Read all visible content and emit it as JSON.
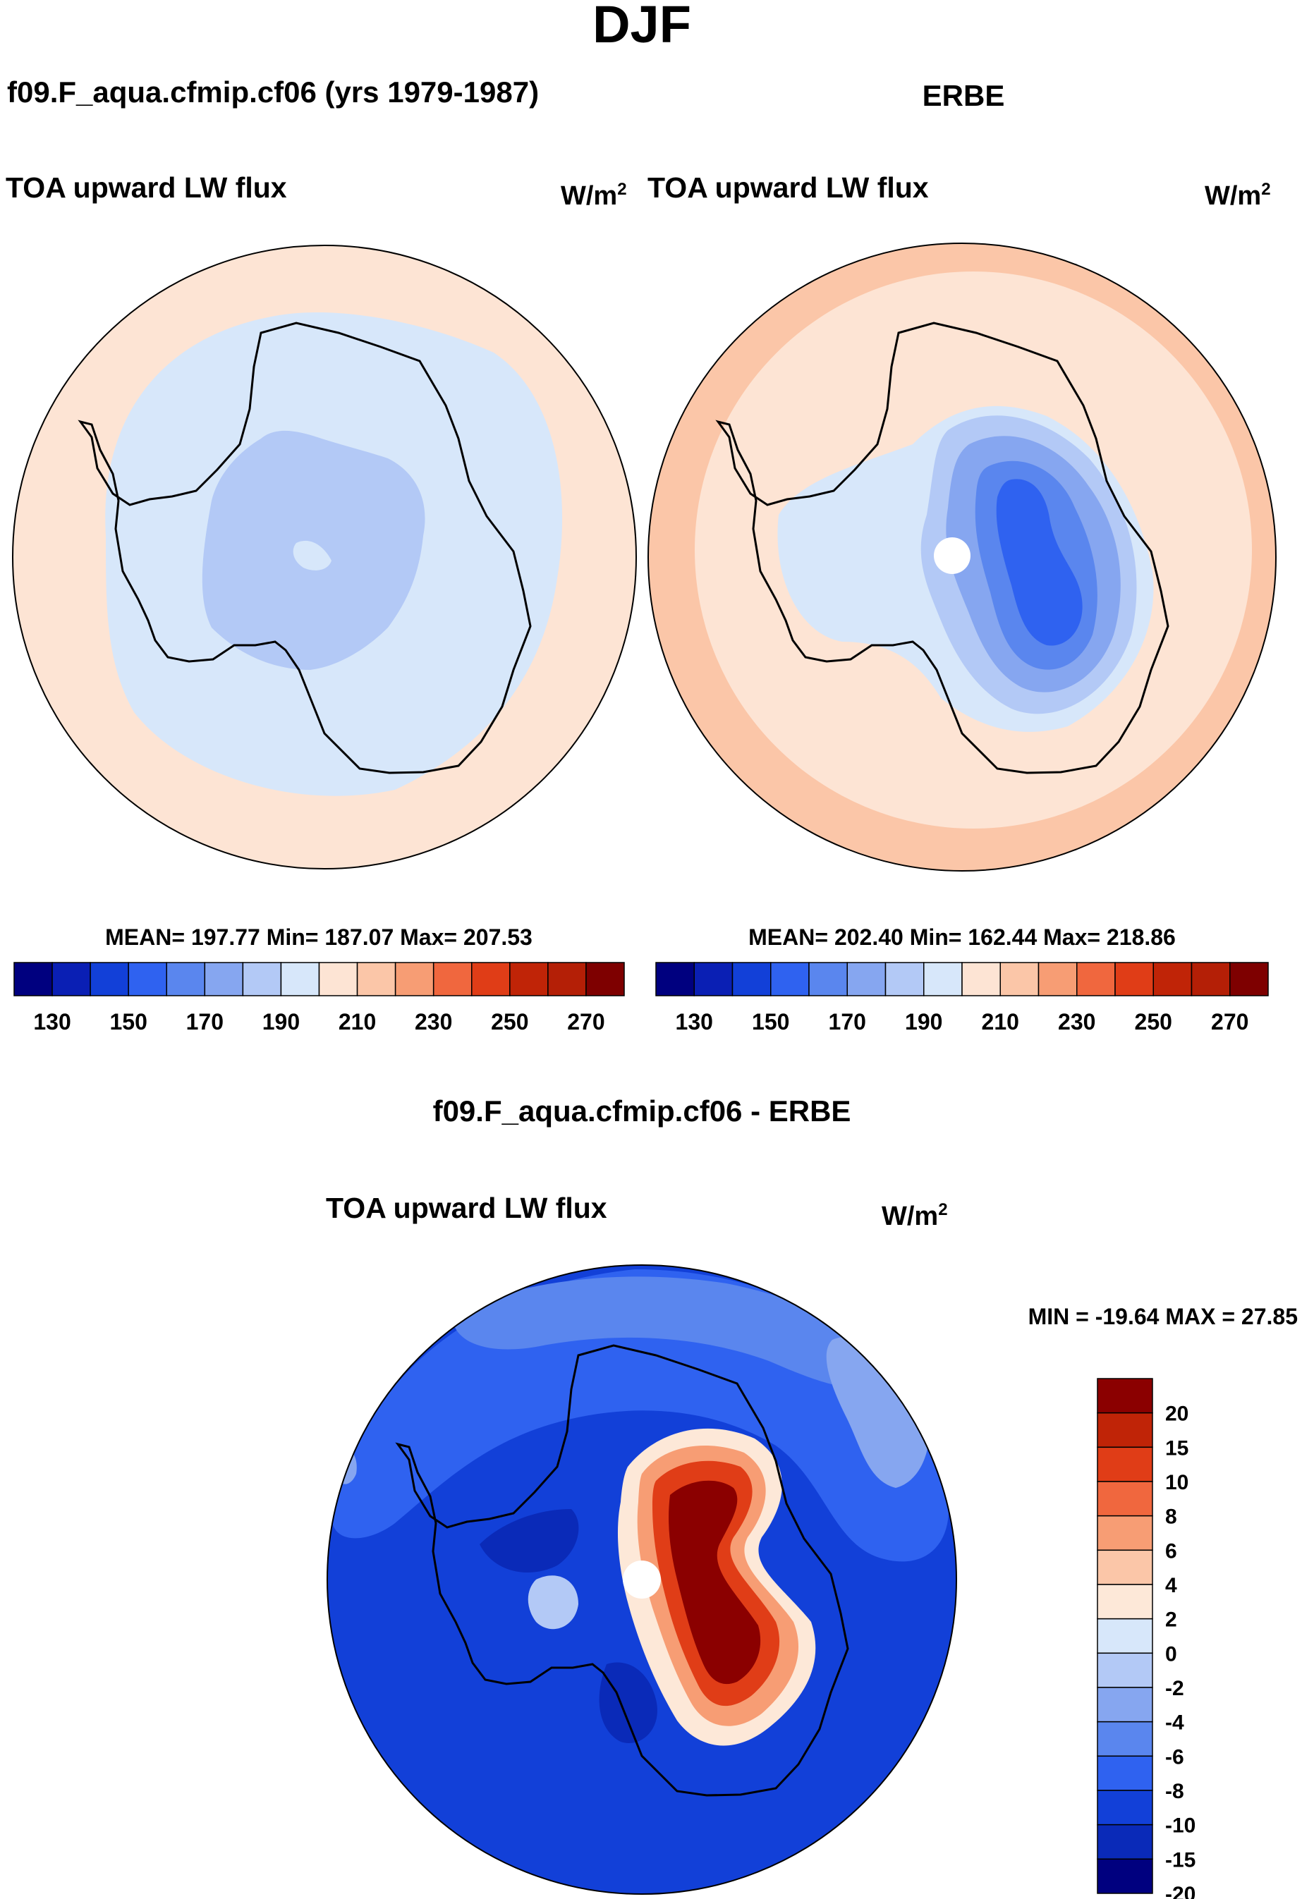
{
  "figure": {
    "season": "DJF",
    "unit_base": "W/m",
    "unit_exp": "2"
  },
  "panels": {
    "model": {
      "case_title": "f09.F_aqua.cfmip.cf06 (yrs 1979-1987)",
      "variable": "TOA upward LW flux",
      "stats": "MEAN= 197.77  Min= 187.07  Max= 207.53"
    },
    "obs": {
      "case_title": "ERBE",
      "variable": "TOA upward LW flux",
      "stats": "MEAN= 202.40  Min= 162.44  Max= 218.86"
    },
    "diff": {
      "case_title": "f09.F_aqua.cfmip.cf06 - ERBE",
      "variable": "TOA upward LW flux",
      "stats": "MIN = -19.64 MAX =  27.85"
    }
  },
  "colors": {
    "abs_palette": [
      "#00007f",
      "#0a1fb4",
      "#1240d8",
      "#2f62f0",
      "#5a86ee",
      "#86a6f0",
      "#b3c9f6",
      "#d7e7fa",
      "#fde4d4",
      "#fbc6a8",
      "#f79d74",
      "#f0673e",
      "#e03d17",
      "#c02407",
      "#b41f06",
      "#7e0000"
    ],
    "diff_palette": [
      "#00007f",
      "#0a2ab8",
      "#1240d8",
      "#2f62f0",
      "#5a86ee",
      "#86a6f0",
      "#b3c9f6",
      "#d7e7fa",
      "#fde8d8",
      "#fbc6a8",
      "#f79d74",
      "#f0673e",
      "#e03d17",
      "#c02407",
      "#8b0000"
    ],
    "coast": "#000000",
    "missing": "#ffffff"
  },
  "chart_data": [
    {
      "type": "heatmap",
      "projection": "south-polar-stereographic",
      "title": "f09.F_aqua.cfmip.cf06 (yrs 1979-1987)",
      "subtitle": "TOA upward LW flux",
      "units": "W/m^2",
      "mean": 197.77,
      "min": 187.07,
      "max": 207.53,
      "contour_levels": [
        130,
        140,
        150,
        160,
        170,
        180,
        190,
        200,
        210,
        220,
        230,
        240,
        250,
        260,
        270
      ],
      "colorbar_tick_labels": [
        "130",
        "150",
        "170",
        "190",
        "210",
        "230",
        "250",
        "270"
      ],
      "regions": [
        {
          "area": "outer ring (southern ocean)",
          "value": 205
        },
        {
          "area": "coastal ring",
          "value": 195
        },
        {
          "area": "antarctic interior",
          "value": 187
        }
      ]
    },
    {
      "type": "heatmap",
      "projection": "south-polar-stereographic",
      "title": "ERBE",
      "subtitle": "TOA upward LW flux",
      "units": "W/m^2",
      "mean": 202.4,
      "min": 162.44,
      "max": 218.86,
      "contour_levels": [
        130,
        140,
        150,
        160,
        170,
        180,
        190,
        200,
        210,
        220,
        230,
        240,
        250,
        260,
        270
      ],
      "colorbar_tick_labels": [
        "130",
        "150",
        "170",
        "190",
        "210",
        "230",
        "250",
        "270"
      ],
      "regions": [
        {
          "area": "outer ring",
          "value": 215
        },
        {
          "area": "middle ring",
          "value": 205
        },
        {
          "area": "coastal / west antarctica",
          "value": 195
        },
        {
          "area": "east antarctic plateau outer",
          "value": 185
        },
        {
          "area": "east antarctic plateau",
          "value": 175
        },
        {
          "area": "east antarctic plateau core",
          "value": 165
        }
      ]
    },
    {
      "type": "heatmap",
      "projection": "south-polar-stereographic",
      "title": "f09.F_aqua.cfmip.cf06 - ERBE",
      "subtitle": "TOA upward LW flux",
      "units": "W/m^2",
      "min": -19.64,
      "max": 27.85,
      "contour_levels": [
        -20,
        -15,
        -10,
        -8,
        -6,
        -4,
        -2,
        0,
        2,
        4,
        6,
        8,
        10,
        15,
        20
      ],
      "colorbar_tick_labels": [
        "20",
        "15",
        "10",
        "8",
        "6",
        "4",
        "2",
        "0",
        "-2",
        "-4",
        "-6",
        "-8",
        "-10",
        "-15",
        "-20"
      ],
      "regions": [
        {
          "area": "southern ocean",
          "value": -11
        },
        {
          "area": "ocean patches",
          "value": -7
        },
        {
          "area": "west antarctica",
          "value": -15
        },
        {
          "area": "east antarctic plateau core",
          "value": 22
        },
        {
          "area": "east antarctic plateau edge",
          "value": 7
        }
      ]
    }
  ]
}
